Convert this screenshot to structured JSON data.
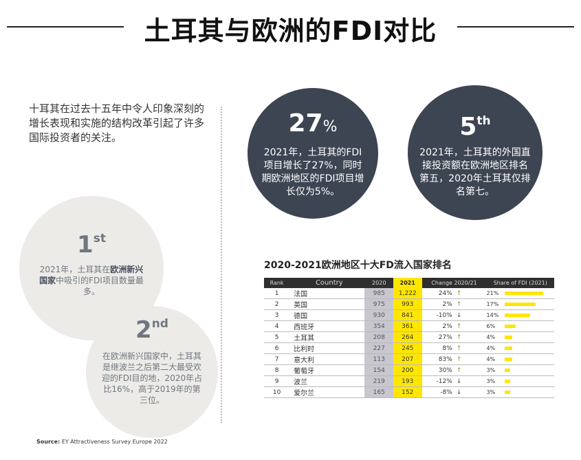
{
  "title": "土耳其与欧洲的FDI对比",
  "intro": "十耳其在过去十五年中令人印象深刻的增长表现和实施的结构改革引起了许多国际投资者的关注。",
  "stats": {
    "s1": {
      "value": "27",
      "suffix": "%",
      "text": "2021年，土耳其的FDI项目增长了27%，同时期欧洲地区的FDI项目增长仅为5%。"
    },
    "s2": {
      "value": "5",
      "suffix": "th",
      "text": "2021年，土耳其的外国直接投资额在欧洲地区排名第五，2020年土耳其仅排名第七。"
    },
    "s3": {
      "value": "1",
      "suffix": "st",
      "text_pre": "2021年，土耳其在",
      "text_bold": "欧洲新兴国家",
      "text_post": "中吸引的FDI项目数量最多。"
    },
    "s4": {
      "value": "2",
      "suffix": "nd",
      "text": "在欧洲新兴国家中，土耳其是继波兰之后第二大最受欢迎的FDI目的地，2020年占比16%，高于2019年的第三位。"
    }
  },
  "table": {
    "title": "2020-2021欧洲地区十大FD流入国家排名",
    "headers": {
      "rank": "Rank",
      "country": "Country",
      "y2020": "2020",
      "y2021": "2021",
      "change": "Change 2020/21",
      "share": "Share of FDI (2021)"
    },
    "rows": [
      {
        "rank": "1",
        "country": "法国",
        "y2020": "985",
        "y2021": "1,222",
        "change": "24%",
        "dir": "↑",
        "share": "21%"
      },
      {
        "rank": "2",
        "country": "英国",
        "y2020": "975",
        "y2021": "993",
        "change": "2%",
        "dir": "↑",
        "share": "17%"
      },
      {
        "rank": "3",
        "country": "德国",
        "y2020": "930",
        "y2021": "841",
        "change": "-10%",
        "dir": "↓",
        "share": "14%"
      },
      {
        "rank": "4",
        "country": "西班牙",
        "y2020": "354",
        "y2021": "361",
        "change": "2%",
        "dir": "↑",
        "share": "6%"
      },
      {
        "rank": "5",
        "country": "土耳其",
        "y2020": "208",
        "y2021": "264",
        "change": "27%",
        "dir": "↑",
        "share": "4%"
      },
      {
        "rank": "6",
        "country": "比利时",
        "y2020": "227",
        "y2021": "245",
        "change": "8%",
        "dir": "↑",
        "share": "4%"
      },
      {
        "rank": "7",
        "country": "意大利",
        "y2020": "113",
        "y2021": "207",
        "change": "83%",
        "dir": "↑",
        "share": "4%"
      },
      {
        "rank": "8",
        "country": "葡萄牙",
        "y2020": "154",
        "y2021": "200",
        "change": "30%",
        "dir": "↑",
        "share": "3%"
      },
      {
        "rank": "9",
        "country": "波兰",
        "y2020": "219",
        "y2021": "193",
        "change": "-12%",
        "dir": "↓",
        "share": "3%"
      },
      {
        "rank": "10",
        "country": "爱尔兰",
        "y2020": "165",
        "y2021": "152",
        "change": "-8%",
        "dir": "↓",
        "share": "3%"
      }
    ]
  },
  "source_label": "Source:",
  "source_text": "EY Attractiveness Survey Europe 2022",
  "colors": {
    "dark_circle": "#3d4452",
    "light_circle": "#ecebe7",
    "accent_yellow": "#ffe600"
  }
}
